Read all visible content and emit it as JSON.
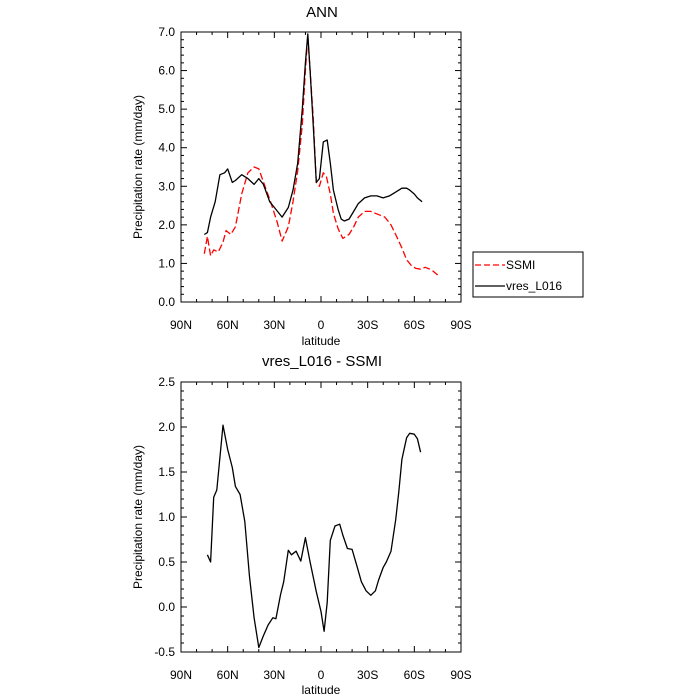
{
  "chart_data": [
    {
      "type": "line",
      "title": "ANN",
      "xlabel": "latitude",
      "ylabel": "Precipitation rate (mm/day)",
      "xlim": [
        90,
        -90
      ],
      "ylim": [
        0,
        7
      ],
      "xticks": [
        90,
        60,
        30,
        0,
        -30,
        -60,
        -90
      ],
      "xtick_labels": [
        "90N",
        "60N",
        "30N",
        "0",
        "30S",
        "60S",
        "90S"
      ],
      "yticks": [
        0,
        1,
        2,
        3,
        4,
        5,
        6,
        7
      ],
      "ytick_labels": [
        "0.0",
        "1.0",
        "2.0",
        "3.0",
        "4.0",
        "5.0",
        "6.0",
        "7.0"
      ],
      "legend_position": "outside-right",
      "series": [
        {
          "name": "SSMI",
          "color": "#ff0000",
          "dash": "dashed",
          "x": [
            75,
            73,
            71,
            69,
            66,
            63,
            61,
            58,
            55,
            51,
            47,
            43,
            40,
            36,
            32,
            28,
            25,
            21,
            18,
            15,
            12,
            10,
            8.5,
            7,
            5,
            3,
            1,
            -1.5,
            -3.5,
            -6,
            -8,
            -11,
            -14,
            -18,
            -21,
            -24,
            -28,
            -32,
            -35,
            -38,
            -41,
            -45,
            -48,
            -52,
            -55,
            -58,
            -61,
            -64,
            -67,
            -70,
            -72,
            -75
          ],
          "y": [
            1.25,
            1.7,
            1.2,
            1.35,
            1.3,
            1.55,
            1.85,
            1.75,
            1.95,
            2.8,
            3.35,
            3.5,
            3.45,
            3.0,
            2.55,
            2.05,
            1.58,
            1.95,
            2.6,
            3.4,
            4.6,
            6.0,
            6.9,
            6.0,
            4.8,
            3.1,
            3.0,
            3.35,
            3.25,
            2.8,
            2.3,
            1.9,
            1.65,
            1.75,
            1.95,
            2.2,
            2.35,
            2.35,
            2.3,
            2.25,
            2.2,
            2.0,
            1.75,
            1.4,
            1.1,
            0.95,
            0.87,
            0.85,
            0.9,
            0.85,
            0.8,
            0.7
          ]
        },
        {
          "name": "vres_L016",
          "color": "#000000",
          "dash": "solid",
          "x": [
            75,
            73,
            71,
            68,
            65,
            62,
            60,
            57,
            55,
            51,
            47,
            43,
            40,
            37,
            33,
            29,
            25,
            21,
            18,
            15,
            12,
            10,
            8.5,
            7,
            5,
            3,
            1,
            -1.5,
            -4,
            -6,
            -8,
            -11,
            -13,
            -15,
            -18,
            -21,
            -24,
            -28,
            -32,
            -36,
            -40,
            -44,
            -48,
            -52,
            -55,
            -57,
            -60,
            -62,
            -65
          ],
          "y": [
            1.75,
            1.8,
            2.2,
            2.6,
            3.3,
            3.35,
            3.45,
            3.1,
            3.15,
            3.3,
            3.2,
            3.05,
            3.2,
            3.05,
            2.6,
            2.4,
            2.2,
            2.45,
            2.9,
            3.6,
            5.0,
            6.2,
            6.95,
            6.0,
            4.6,
            3.1,
            3.2,
            4.15,
            4.2,
            3.6,
            2.9,
            2.4,
            2.15,
            2.1,
            2.15,
            2.35,
            2.55,
            2.7,
            2.75,
            2.75,
            2.7,
            2.75,
            2.85,
            2.95,
            2.95,
            2.9,
            2.8,
            2.7,
            2.6
          ]
        }
      ]
    },
    {
      "type": "line",
      "title": "vres_L016 - SSMI",
      "xlabel": "latitude",
      "ylabel": "Precipitation rate (mm/day)",
      "xlim": [
        90,
        -90
      ],
      "ylim": [
        -0.5,
        2.5
      ],
      "xticks": [
        90,
        60,
        30,
        0,
        -30,
        -60,
        -90
      ],
      "xtick_labels": [
        "90N",
        "60N",
        "30N",
        "0",
        "30S",
        "60S",
        "90S"
      ],
      "yticks": [
        -0.5,
        0,
        0.5,
        1,
        1.5,
        2,
        2.5
      ],
      "ytick_labels": [
        "-0.5",
        "0.0",
        "0.5",
        "1.0",
        "1.5",
        "2.0",
        "2.5"
      ],
      "series": [
        {
          "color": "#000000",
          "dash": "solid",
          "x": [
            73,
            71,
            69,
            67,
            63,
            60,
            57,
            55,
            52,
            49,
            46,
            43,
            40,
            37,
            34,
            31,
            29,
            26,
            24,
            21,
            19,
            16,
            13,
            10,
            7,
            3,
            0,
            -2,
            -4,
            -6,
            -9,
            -12,
            -14,
            -17,
            -20,
            -23,
            -26,
            -29,
            -32,
            -35,
            -37,
            -40,
            -42,
            -45,
            -48,
            -50,
            -52,
            -55,
            -57,
            -60,
            -62,
            -64
          ],
          "y": [
            0.58,
            0.5,
            1.22,
            1.3,
            2.02,
            1.75,
            1.55,
            1.34,
            1.25,
            0.95,
            0.35,
            -0.12,
            -0.45,
            -0.32,
            -0.2,
            -0.12,
            -0.13,
            0.14,
            0.28,
            0.63,
            0.58,
            0.62,
            0.51,
            0.77,
            0.5,
            0.17,
            -0.05,
            -0.27,
            0.05,
            0.74,
            0.9,
            0.92,
            0.8,
            0.65,
            0.64,
            0.46,
            0.28,
            0.18,
            0.13,
            0.18,
            0.3,
            0.44,
            0.5,
            0.62,
            0.97,
            1.28,
            1.64,
            1.88,
            1.93,
            1.92,
            1.87,
            1.72
          ]
        }
      ]
    }
  ]
}
